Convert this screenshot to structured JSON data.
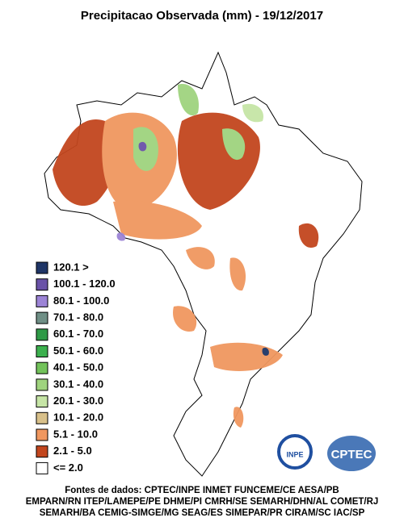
{
  "header": {
    "title": "Precipitacao Observada (mm) - 19/12/2017"
  },
  "legend": [
    {
      "label": "120.1 >",
      "color": "#1f3566"
    },
    {
      "label": "100.1 - 120.0",
      "color": "#6a52a8"
    },
    {
      "label": "80.1 - 100.0",
      "color": "#9c84d6"
    },
    {
      "label": "70.1 - 80.0",
      "color": "#6f8f86"
    },
    {
      "label": "60.1 - 70.0",
      "color": "#2f9a47"
    },
    {
      "label": "50.1 - 60.0",
      "color": "#3cb04e"
    },
    {
      "label": "40.1 - 50.0",
      "color": "#72c25a"
    },
    {
      "label": "30.1 - 40.0",
      "color": "#9fd37e"
    },
    {
      "label": "20.1 - 30.0",
      "color": "#c6e5a6"
    },
    {
      "label": "10.1 - 20.0",
      "color": "#d8c08a"
    },
    {
      "label": "5.1 - 10.0",
      "color": "#f0975f"
    },
    {
      "label": "2.1 - 5.0",
      "color": "#c2461e"
    },
    {
      "label": "<= 2.0",
      "color": "#ffffff"
    }
  ],
  "logos": {
    "left": "INPE",
    "right": "CPTEC"
  },
  "sources": [
    "Fontes de dados: CPTEC/INPE INMET FUNCEME/CE AESA/PB",
    "EMPARN/RN ITEP/LAMEPE/PE DHME/PI CMRH/SE SEMARH/DHN/AL COMET/RJ",
    "SEMARH/BA CEMIG-SIMGE/MG SEAG/ES SIMEPAR/PR CIRAM/SC IAC/SP"
  ]
}
